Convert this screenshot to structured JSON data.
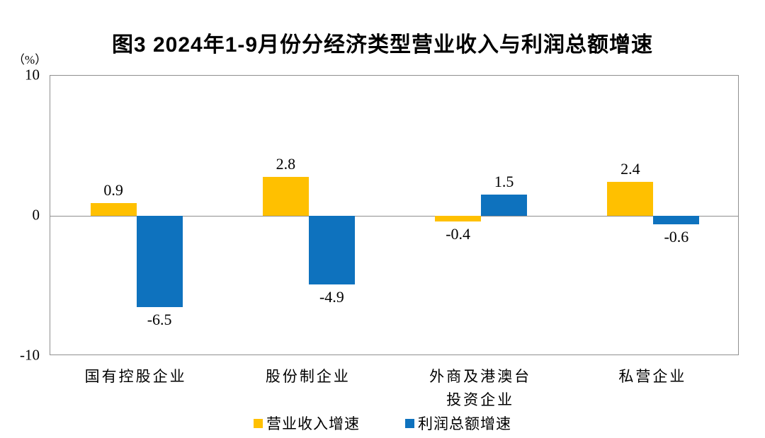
{
  "chart": {
    "colors": {
      "revenue_series": "#FFC000",
      "profit_series": "#0E72BE",
      "axis_border": "#8f8f8f",
      "text": "#000000",
      "background": "#ffffff"
    }
  },
  "chart_data": {
    "type": "bar",
    "title": "图3 2024年1-9月份分经济类型营业收入与利润总额增速",
    "ylabel": "（%）",
    "xlabel": "",
    "ylim": [
      -10,
      10
    ],
    "yticks": [
      10,
      0,
      -10
    ],
    "grid": false,
    "legend_position": "bottom",
    "categories": [
      "国有控股企业",
      "股份制企业",
      "外商及港澳台\n投资企业",
      "私营企业"
    ],
    "series": [
      {
        "name": "营业收入增速",
        "color": "#FFC000",
        "values": [
          0.9,
          2.8,
          -0.4,
          2.4
        ]
      },
      {
        "name": "利润总额增速",
        "color": "#0E72BE",
        "values": [
          -6.5,
          -4.9,
          1.5,
          -0.6
        ]
      }
    ],
    "value_labels": [
      [
        "0.9",
        "2.8",
        "-0.4",
        "2.4"
      ],
      [
        "-6.5",
        "-4.9",
        "1.5",
        "-0.6"
      ]
    ]
  }
}
